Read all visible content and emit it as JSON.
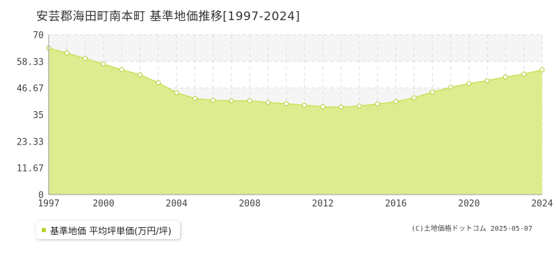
{
  "page": {
    "title": "安芸郡海田町南本町 基準地価推移[1997-2024]",
    "copyright": "(C)土地価格ドットコム 2025-05-07"
  },
  "legend": {
    "label": "基準地価 平均坪単価(万円/坪)",
    "color": "#b5d62c"
  },
  "colors": {
    "area_fill": "#dcec8f",
    "line": "#c9e25a",
    "marker_stroke": "#b9d44a",
    "grid": "#dddddd",
    "band": "#f5f5f5"
  },
  "chart_data": {
    "type": "area",
    "title": "安芸郡海田町南本町 基準地価推移[1997-2024]",
    "xlim": [
      1997,
      2024
    ],
    "ylim": [
      0,
      70
    ],
    "x_ticks": [
      1997,
      2000,
      2004,
      2008,
      2012,
      2016,
      2020,
      2024
    ],
    "y_ticks": [
      0,
      11.67,
      23.33,
      35,
      46.67,
      58.33,
      70
    ],
    "x_tick_labels": [
      "1997",
      "2000",
      "2004",
      "2008",
      "2012",
      "2016",
      "2020",
      "2024"
    ],
    "y_tick_labels": [
      "0",
      "11.67",
      "23.33",
      "35",
      "46.67",
      "58.33",
      "70"
    ],
    "grid": true,
    "legend_position": "bottom-left",
    "series": [
      {
        "name": "基準地価 平均坪単価(万円/坪)",
        "x": [
          1997,
          1998,
          1999,
          2000,
          2001,
          2002,
          2003,
          2004,
          2005,
          2006,
          2007,
          2008,
          2009,
          2010,
          2011,
          2012,
          2013,
          2014,
          2015,
          2016,
          2017,
          2018,
          2019,
          2020,
          2021,
          2022,
          2023,
          2024
        ],
        "y": [
          64.2,
          62.0,
          59.6,
          57.2,
          54.7,
          52.5,
          49.0,
          44.6,
          42.1,
          41.3,
          41.1,
          41.1,
          40.4,
          39.8,
          39.1,
          38.5,
          38.3,
          38.8,
          39.7,
          40.7,
          42.4,
          44.9,
          47.0,
          48.6,
          49.9,
          51.5,
          52.8,
          54.6
        ]
      }
    ]
  }
}
